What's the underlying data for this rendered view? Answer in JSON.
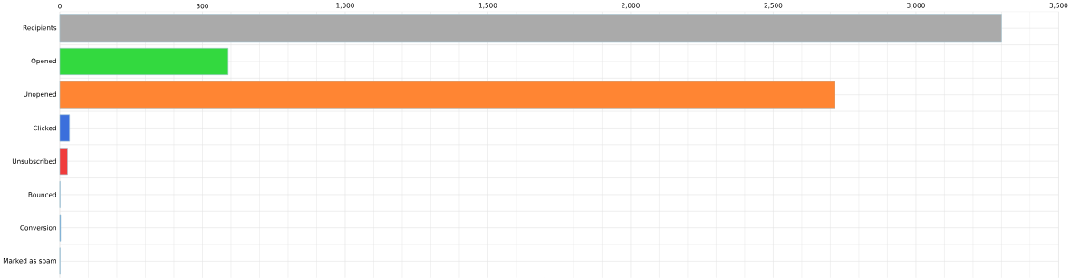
{
  "chart_data": {
    "type": "bar",
    "orientation": "horizontal",
    "categories": [
      "Recipients",
      "Opened",
      "Unopened",
      "Clicked",
      "Unsubscribed",
      "Bounced",
      "Conversion",
      "Marked as spam"
    ],
    "values": [
      3300,
      590,
      2715,
      34,
      27,
      1,
      3,
      1
    ],
    "colors": [
      "#aaaaaa",
      "#33d93f",
      "#ff8533",
      "#3b6fdc",
      "#f03c3c",
      "#5b9bd5",
      "#5b9bd5",
      "#5b9bd5"
    ],
    "xlim": [
      0,
      3500
    ],
    "xticks": [
      {
        "value": 0,
        "label": "0"
      },
      {
        "value": 500,
        "label": "500"
      },
      {
        "value": 1000,
        "label": "1,000"
      },
      {
        "value": 1500,
        "label": "1,500"
      },
      {
        "value": 2000,
        "label": "2,000"
      },
      {
        "value": 2500,
        "label": "2,500"
      },
      {
        "value": 3000,
        "label": "3,000"
      },
      {
        "value": 3500,
        "label": "3,500"
      }
    ],
    "grid": true
  }
}
